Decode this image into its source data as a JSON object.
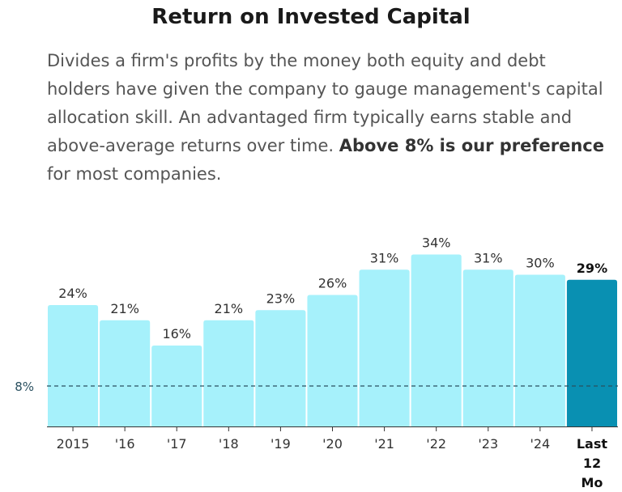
{
  "title": "Return on Invested Capital",
  "description": {
    "text": "Divides a firm's profits by the money both equity and debt holders have given the company to gauge management's capital allocation skill. An advantaged firm typically earns stable and above-average returns over time.",
    "bold": "Above 8% is our preference",
    "tail": "for most companies."
  },
  "colors": {
    "bar": "#a6f1fb",
    "highlight": "#0990b2",
    "reference": "#2a5060"
  },
  "chart_data": {
    "type": "bar",
    "title": "Return on Invested Capital",
    "categories": [
      "2015",
      "'16",
      "'17",
      "'18",
      "'19",
      "'20",
      "'21",
      "'22",
      "'23",
      "'24",
      "Last 12 Mo"
    ],
    "values": [
      24,
      21,
      16,
      21,
      23,
      26,
      31,
      34,
      31,
      30,
      29
    ],
    "labels": [
      "24%",
      "21%",
      "16%",
      "21%",
      "23%",
      "26%",
      "31%",
      "34%",
      "31%",
      "30%",
      "29%"
    ],
    "highlight_index": 10,
    "reference_line": {
      "value": 8,
      "label": "8%"
    },
    "ylim": [
      0,
      40
    ],
    "xlabel": "",
    "ylabel": ""
  }
}
